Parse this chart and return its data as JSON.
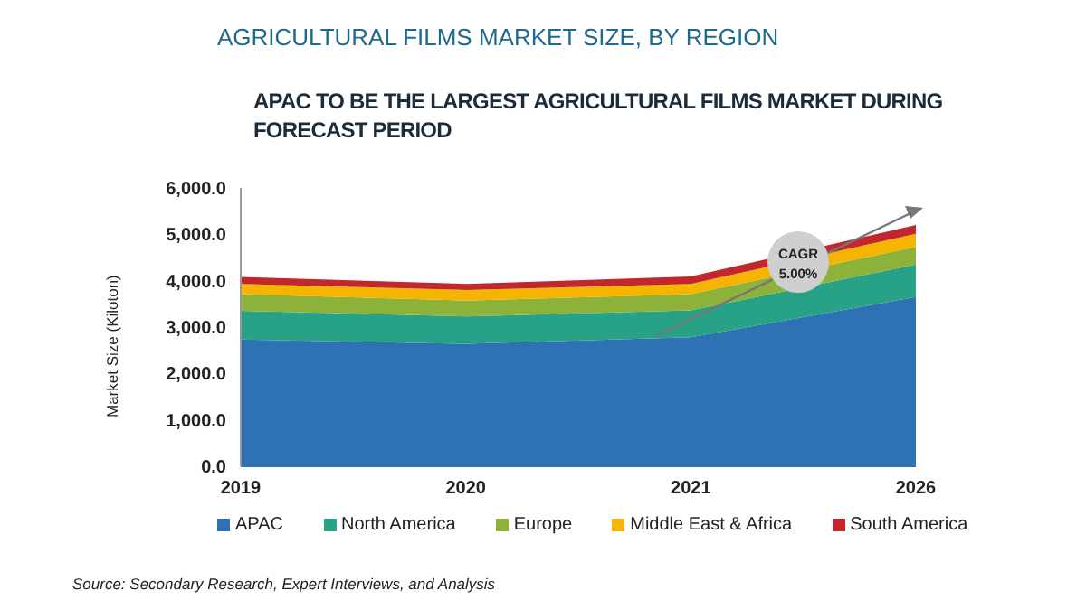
{
  "chart_data": {
    "type": "area",
    "title": "AGRICULTURAL FILMS MARKET SIZE, BY REGION",
    "subtitle": "APAC TO BE THE LARGEST AGRICULTURAL FILMS MARKET DURING FORECAST PERIOD",
    "ylabel": "Market Size (Kiloton)",
    "categories": [
      "2019",
      "2020",
      "2021",
      "2026"
    ],
    "stacked": true,
    "series": [
      {
        "name": "APAC",
        "color": "#2e72b4",
        "values": [
          2730,
          2640,
          2780,
          3650
        ]
      },
      {
        "name": "North America",
        "color": "#27a287",
        "values": [
          620,
          590,
          580,
          700
        ]
      },
      {
        "name": "Europe",
        "color": "#8cb23a",
        "values": [
          360,
          340,
          350,
          380
        ]
      },
      {
        "name": "Middle East & Africa",
        "color": "#f4b400",
        "values": [
          220,
          230,
          220,
          280
        ]
      },
      {
        "name": "South America",
        "color": "#c1272d",
        "values": [
          150,
          130,
          160,
          190
        ]
      }
    ],
    "ylim": [
      0,
      6000
    ],
    "yticks": [
      {
        "value": 0,
        "label": "0.0"
      },
      {
        "value": 1000,
        "label": "1,000.0"
      },
      {
        "value": 2000,
        "label": "2,000.0"
      },
      {
        "value": 3000,
        "label": "3,000.0"
      },
      {
        "value": 4000,
        "label": "4,000.0"
      },
      {
        "value": 5000,
        "label": "5,000.0"
      },
      {
        "value": 6000,
        "label": "6,000.0"
      }
    ],
    "grid": false,
    "legend": "bottom",
    "annotations": [
      "CAGR 5.00%",
      "Source: Secondary Research, Expert Interviews, and Analysis"
    ]
  }
}
